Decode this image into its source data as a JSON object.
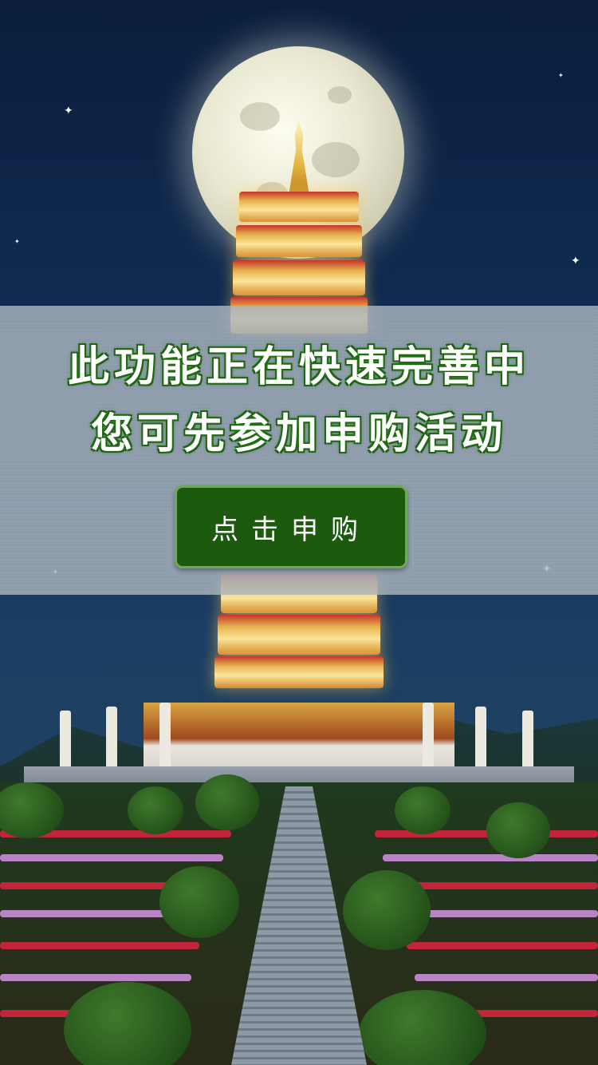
{
  "notice": {
    "line1": "此功能正在快速完善中",
    "line2": "您可先参加申购活动"
  },
  "cta": {
    "label": "点击申购"
  },
  "colors": {
    "accent_green": "#1c5a0d",
    "band_gray": "#aab4be",
    "sky_navy": "#0b1e3d"
  }
}
